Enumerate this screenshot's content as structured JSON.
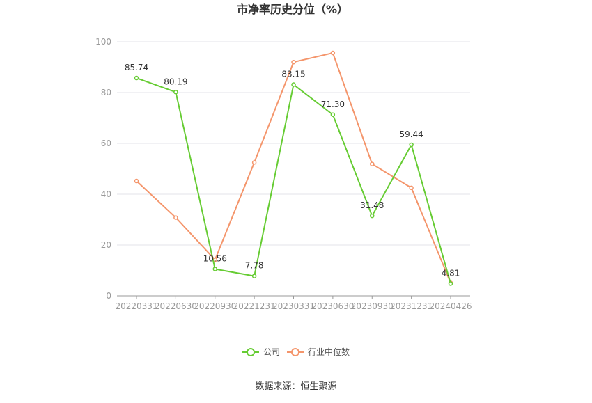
{
  "chart_data": {
    "type": "line",
    "title": "市净率历史分位（%）",
    "categories": [
      "20220331",
      "20220630",
      "20220930",
      "20221231",
      "20230331",
      "20230630",
      "20230930",
      "20231231",
      "20240426"
    ],
    "ylim": [
      0,
      100
    ],
    "yticks": [
      0,
      20,
      40,
      60,
      80,
      100
    ],
    "grid": true,
    "legend_position": "bottom",
    "series": [
      {
        "name": "公司",
        "color": "#66cc33",
        "values": [
          85.74,
          80.19,
          10.56,
          7.78,
          83.15,
          71.3,
          31.48,
          59.44,
          4.81
        ],
        "labels": [
          "85.74",
          "80.19",
          "10.56",
          "7.78",
          "83.15",
          "71.30",
          "31.48",
          "59.44",
          "4.81"
        ]
      },
      {
        "name": "行业中位数",
        "color": "#f4956b",
        "values": [
          45.2,
          30.8,
          14.2,
          52.5,
          92.0,
          95.6,
          51.9,
          42.5,
          5.1
        ]
      }
    ]
  },
  "source_text": "数据来源：恒生聚源"
}
